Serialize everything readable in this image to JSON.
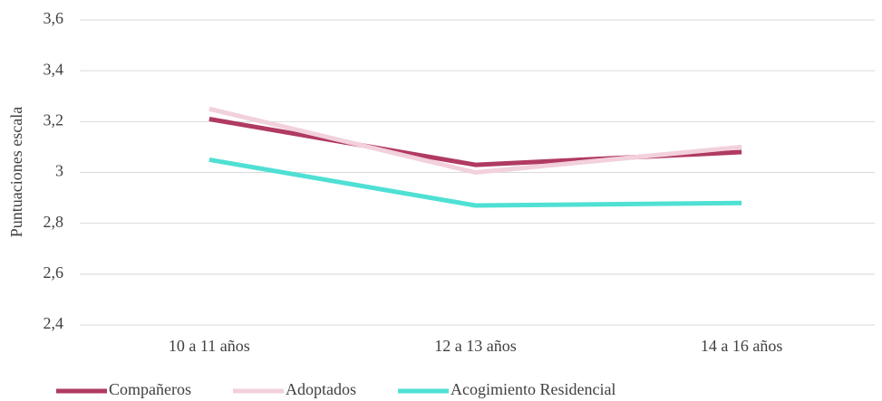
{
  "chart_data": {
    "type": "line",
    "y_label": "Puntuaciones escala",
    "categories": [
      "10 a 11 años",
      "12 a 13 años",
      "14 a 16 años"
    ],
    "series": [
      {
        "name": "Compañeros",
        "color": "#b03a63",
        "values": [
          3.21,
          3.03,
          3.08
        ]
      },
      {
        "name": "Adoptados",
        "color": "#f2d0dc",
        "values": [
          3.25,
          3.0,
          3.1
        ]
      },
      {
        "name": "Acogimiento Residencial",
        "color": "#4fe0d4",
        "values": [
          3.05,
          2.87,
          2.88
        ]
      }
    ],
    "ylim": [
      2.4,
      3.6
    ],
    "yticks": [
      {
        "value": 2.4,
        "label": "2,4"
      },
      {
        "value": 2.6,
        "label": "2,6"
      },
      {
        "value": 2.8,
        "label": "2,8"
      },
      3,
      {
        "value": 3.2,
        "label": "3,2"
      },
      {
        "value": 3.4,
        "label": "3,4"
      },
      {
        "value": 3.6,
        "label": "3,6"
      }
    ],
    "grid": true,
    "legend": "bottom"
  }
}
